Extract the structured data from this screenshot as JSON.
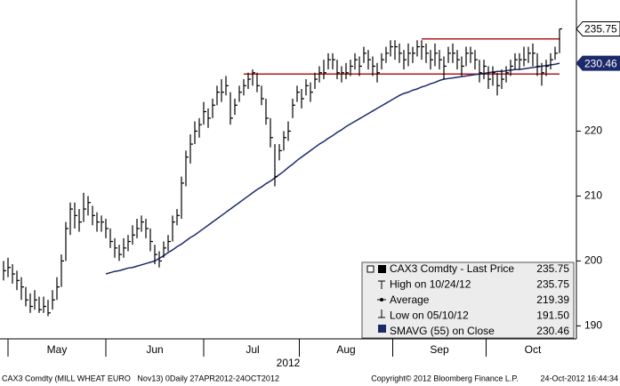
{
  "chart_data": {
    "type": "ohlc",
    "categories": [
      null,
      null,
      null,
      null,
      null,
      null,
      null,
      null,
      null,
      null,
      null,
      null,
      "May",
      null,
      null,
      null,
      null,
      null,
      null,
      null,
      null,
      null,
      null,
      null,
      null,
      null,
      null,
      null,
      null,
      null,
      null,
      null,
      null,
      null,
      "Jun",
      null,
      null,
      null,
      null,
      null,
      null,
      null,
      null,
      null,
      null,
      null,
      null,
      null,
      null,
      null,
      null,
      null,
      null,
      null,
      null,
      null,
      "Jul",
      null,
      null,
      null,
      null,
      null,
      null,
      null,
      null,
      null,
      null,
      null,
      null,
      null,
      null,
      null,
      null,
      null,
      null,
      null,
      null,
      "Aug",
      null,
      null,
      null,
      null,
      null,
      null,
      null,
      null,
      null,
      null,
      null,
      null,
      null,
      null,
      null,
      null,
      null,
      null,
      null,
      null,
      "Sep",
      null,
      null,
      null,
      null,
      null,
      null,
      null,
      null,
      null,
      null,
      null,
      null,
      null,
      null,
      null,
      null,
      null,
      null,
      null,
      null,
      "Oct",
      null,
      null,
      null,
      null,
      null,
      null
    ],
    "x_label": "2012",
    "bars": {
      "color": "#000000",
      "high": [
        200,
        200.5,
        199.5,
        198.5,
        197.5,
        196,
        195,
        195.5,
        194.5,
        194.5,
        194,
        195.5,
        197.5,
        201,
        206,
        209,
        209,
        208,
        210.5,
        210,
        208.5,
        207.5,
        207,
        206.5,
        205,
        203.5,
        202.5,
        203.5,
        204,
        205.5,
        206.5,
        207,
        206.5,
        205,
        202.5,
        201.5,
        203,
        204,
        207,
        208,
        213,
        217,
        219.5,
        221.5,
        222,
        224.5,
        223.5,
        225,
        227,
        228,
        228.5,
        226,
        225,
        227,
        228,
        229,
        229.5,
        229,
        227,
        225,
        222,
        218,
        218,
        220,
        221.5,
        225,
        227,
        226.5,
        228,
        227.5,
        229,
        230,
        231,
        232,
        232,
        231,
        230,
        230.5,
        231,
        232,
        231.5,
        233,
        232.5,
        231.5,
        230.5,
        232,
        233,
        234,
        234,
        233.5,
        232.5,
        233.5,
        233,
        234,
        234,
        233.5,
        232.5,
        233.5,
        232.5,
        231.5,
        233,
        233.5,
        232.5,
        231.5,
        233,
        233,
        232.5,
        231,
        231,
        230,
        230,
        229,
        229.5,
        230,
        231,
        232,
        232,
        233,
        233,
        233.5,
        232,
        230.5,
        231,
        232,
        233,
        235.75
      ],
      "low": [
        197,
        197.5,
        196.5,
        195.5,
        194,
        193,
        192,
        192.5,
        192,
        192,
        191.5,
        192.5,
        194,
        196,
        200,
        204,
        205,
        204.5,
        206,
        207,
        205.5,
        204.5,
        204.5,
        203.5,
        202,
        200.5,
        200,
        200.5,
        201.5,
        202.5,
        203.5,
        204.5,
        203.5,
        201.5,
        199.5,
        199,
        200.5,
        201.5,
        203,
        205.5,
        206.5,
        211.5,
        215,
        218,
        219,
        221,
        220.5,
        222,
        224,
        224.5,
        225.5,
        221,
        222.5,
        224.5,
        225.5,
        226.5,
        227,
        226,
        224,
        221,
        217.5,
        211.5,
        215.5,
        217,
        218.5,
        222,
        224.5,
        223.5,
        225.5,
        224.5,
        226.5,
        227.5,
        228,
        229.5,
        229.5,
        228,
        227.5,
        228,
        228.5,
        229.5,
        228.5,
        230.5,
        229.5,
        228.5,
        227.5,
        229.5,
        230.5,
        231.5,
        231,
        230.5,
        229.5,
        230,
        230.5,
        231.5,
        231,
        230.5,
        229.5,
        230,
        229.5,
        228,
        230.5,
        230.5,
        229.5,
        228.5,
        230,
        230.5,
        229.5,
        227.5,
        228,
        226.5,
        227,
        225.5,
        226.5,
        227.5,
        228.5,
        229.5,
        229.5,
        230,
        230.5,
        230,
        228.5,
        227,
        228.5,
        229.5,
        231,
        232
      ],
      "close": [
        198.5,
        199,
        198,
        197,
        196,
        194,
        193,
        194,
        192.5,
        193,
        192,
        194,
        196,
        200,
        205,
        208,
        207,
        206,
        208,
        209,
        207,
        206,
        206,
        205,
        203,
        202,
        201,
        202,
        203,
        204,
        205,
        206,
        205,
        203,
        201,
        200,
        202,
        203,
        206,
        207,
        212,
        216,
        218,
        220,
        221,
        223,
        222,
        224,
        226,
        226,
        227,
        222,
        224,
        226,
        227,
        228,
        229,
        227,
        225,
        222,
        219,
        213,
        217,
        219,
        220,
        224,
        226,
        225,
        227,
        226,
        228,
        229,
        229,
        231,
        231,
        229,
        229,
        229,
        230,
        231,
        230,
        232,
        231,
        230,
        229,
        231,
        232,
        233,
        233,
        232,
        231,
        232,
        232,
        233,
        233,
        232,
        231,
        232,
        231,
        230,
        232,
        232,
        231,
        230,
        232,
        232,
        231,
        229,
        230,
        228,
        229,
        227,
        228,
        229,
        230,
        231,
        231,
        231,
        232,
        232,
        230,
        229,
        230,
        231,
        232,
        235.75
      ]
    },
    "sma": {
      "color": "#1c2a6b",
      "values": [
        null,
        null,
        null,
        null,
        null,
        null,
        null,
        null,
        null,
        null,
        null,
        null,
        null,
        null,
        null,
        null,
        null,
        null,
        null,
        null,
        null,
        null,
        null,
        198.0,
        198.2,
        198.4,
        198.5,
        198.7,
        198.9,
        199.0,
        199.2,
        199.4,
        199.6,
        199.8,
        200.0,
        200.4,
        200.8,
        201.3,
        201.7,
        202.2,
        202.6,
        203.1,
        203.6,
        204.0,
        204.5,
        205.0,
        205.5,
        206.0,
        206.5,
        207.0,
        207.5,
        208.0,
        208.5,
        209.0,
        209.5,
        210.0,
        210.5,
        211.0,
        211.4,
        211.9,
        212.3,
        212.8,
        213.3,
        213.8,
        214.4,
        214.9,
        215.5,
        216.0,
        216.5,
        217.0,
        217.5,
        218.0,
        218.4,
        218.9,
        219.3,
        219.8,
        220.2,
        220.7,
        221.1,
        221.5,
        221.9,
        222.3,
        222.7,
        223.1,
        223.5,
        223.9,
        224.3,
        224.7,
        225.1,
        225.5,
        225.8,
        226.0,
        226.3,
        226.5,
        226.8,
        227.0,
        227.3,
        227.5,
        227.8,
        228.0,
        228.1,
        228.2,
        228.3,
        228.4,
        228.5,
        228.6,
        228.7,
        228.8,
        228.9,
        229.0,
        229.1,
        229.2,
        229.2,
        229.3,
        229.4,
        229.5,
        229.5,
        229.6,
        229.7,
        229.8,
        229.9,
        230.0,
        230.1,
        230.2,
        230.3,
        230.46
      ]
    },
    "trendlines": [
      {
        "color": "#b01c1c",
        "x": [
          54,
          125
        ],
        "values": [
          228.8,
          228.8
        ]
      },
      {
        "color": "#b01c1c",
        "x": [
          94,
          125
        ],
        "values": [
          234.2,
          234.2
        ]
      }
    ],
    "ylim": [
      188,
      240.2
    ],
    "yticks": [
      190,
      200,
      210,
      220
    ],
    "flags": [
      {
        "value": 235.75,
        "label": "235.75"
      },
      {
        "value": 230.46,
        "label": "230.46"
      }
    ],
    "legend": [
      {
        "name": "CAX3 Comdty - Last Price",
        "stat": "235.75"
      },
      {
        "name": "High on 10/24/12",
        "stat": "235.75"
      },
      {
        "name": "Average",
        "stat": "219.39"
      },
      {
        "name": "Low on 05/10/12",
        "stat": "191.50"
      },
      {
        "name": "SMAVG (55) on Close",
        "stat": "230.46"
      }
    ],
    "footer": {
      "left": "CAX3 Comdty (MILL WHEAT EURO   Nov13) 0Daily 27APR2012-24OCT2012",
      "center": "Copyright© 2012 Bloomberg Finance L.P.",
      "right": "24-Oct-2012 16:44:34"
    }
  }
}
